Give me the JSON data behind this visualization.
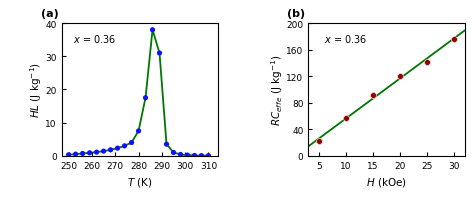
{
  "panel_a": {
    "T": [
      250,
      253,
      256,
      259,
      262,
      265,
      268,
      271,
      274,
      277,
      280,
      283,
      286,
      289,
      292,
      295,
      298,
      301,
      304,
      307,
      310
    ],
    "HL": [
      0.3,
      0.5,
      0.7,
      0.9,
      1.1,
      1.4,
      1.8,
      2.3,
      3.0,
      4.0,
      7.5,
      17.5,
      38.0,
      31.0,
      3.5,
      1.0,
      0.4,
      0.2,
      0.1,
      0.05,
      0.05
    ],
    "annotation": "x = 0.36",
    "xlim": [
      247,
      314
    ],
    "ylim": [
      0,
      40
    ],
    "xticks": [
      250,
      260,
      270,
      280,
      290,
      300,
      310
    ],
    "yticks": [
      0,
      10,
      20,
      30,
      40
    ],
    "line_color": "#007700",
    "marker_color": "#1010FF",
    "label": "(a)"
  },
  "panel_b": {
    "H": [
      5,
      10,
      15,
      20,
      25,
      30
    ],
    "RC": [
      22,
      57,
      92,
      120,
      142,
      176
    ],
    "annotation": "x = 0.36",
    "xlim": [
      3,
      32
    ],
    "ylim": [
      0,
      200
    ],
    "xticks": [
      5,
      10,
      15,
      20,
      25,
      30
    ],
    "yticks": [
      0,
      40,
      80,
      120,
      160,
      200
    ],
    "line_color": "#007700",
    "marker_color": "#8B0000",
    "label": "(b)"
  }
}
